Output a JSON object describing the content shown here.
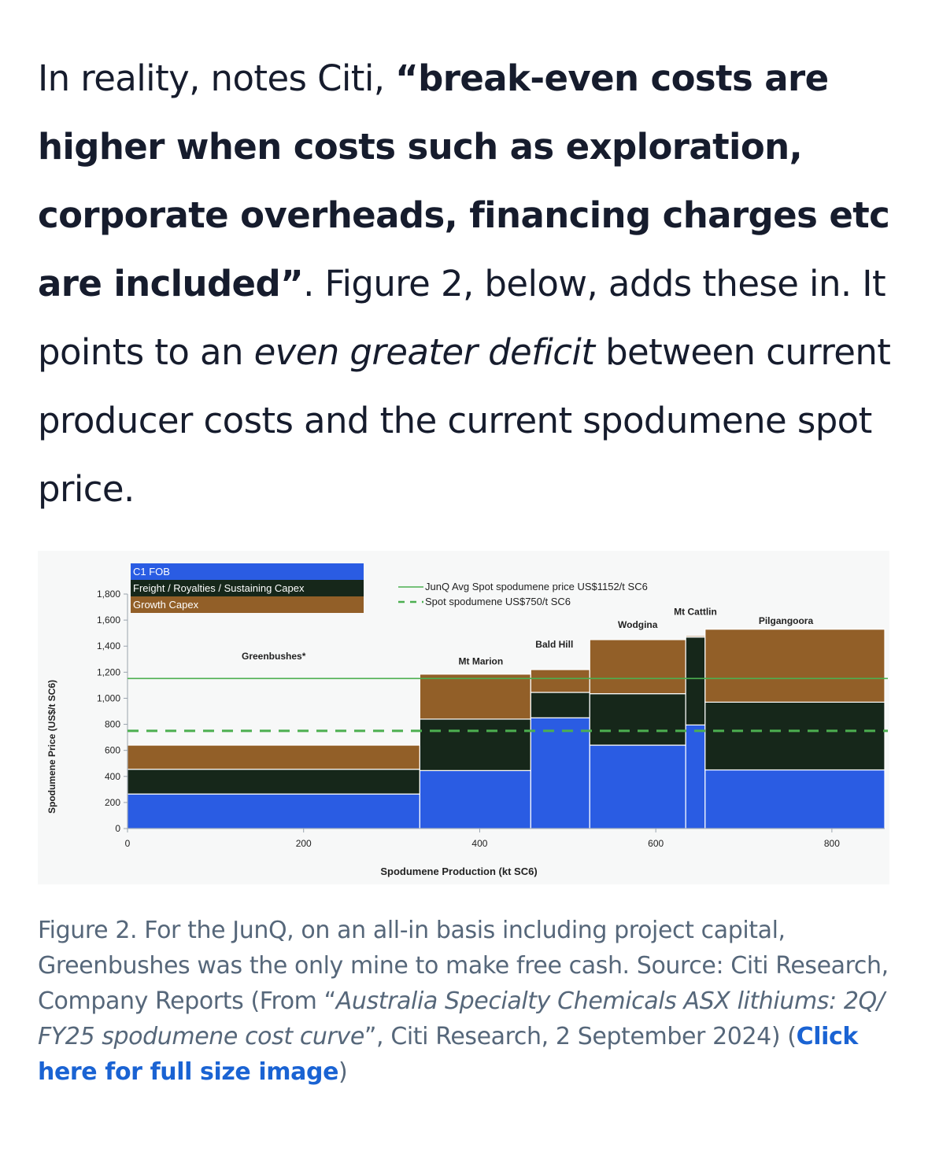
{
  "paragraph": {
    "t1": "In reality, notes Citi, ",
    "b1": "“break-even costs are higher when costs such as exploration, corporate overheads, financing charges etc are included”",
    "t2": ". Figure 2, below, adds these in. It points to an ",
    "i1": "even greater deficit",
    "t3": " between current producer costs and the current spodumene spot price."
  },
  "caption": {
    "t1": "Figure 2. For the JunQ, on an all-in basis including project capital, Greenbushes was the only mine to make free cash. Source: Citi Research, Company Reports (From “",
    "i1": "Australia Specialty Chemicals ASX lithiums: 2Q/ FY25 spodumene cost curve",
    "t2": "”, Citi Research, 2 September 2024) (",
    "link": "Click here for full size image",
    "t3": ")"
  },
  "colors": {
    "c1_fob": "#2a5ce3",
    "freight": "#16271a",
    "growth": "#925f28",
    "junq_line": "#4caf50",
    "spot_line": "#4caf50",
    "link": "#1a63d3"
  },
  "chart_data": {
    "type": "bar",
    "subtype": "stacked-variable-width cost curve",
    "xlabel": "Spodumene Production (kt SC6)",
    "ylabel": "Spodumene Price (US$/t SC6)",
    "xlim": [
      0,
      860
    ],
    "ylim": [
      0,
      1800
    ],
    "xticks": [
      0,
      200,
      400,
      600,
      800
    ],
    "yticks": [
      0,
      200,
      400,
      600,
      800,
      1000,
      1200,
      1400,
      1600,
      1800
    ],
    "ytick_labels": [
      "0",
      "200",
      "400",
      "600",
      "800",
      "1,000",
      "1,200",
      "1,400",
      "1,600",
      "1,800"
    ],
    "legend": [
      "C1 FOB",
      "Freight / Royalties / Sustaining Capex",
      "Growth Capex"
    ],
    "legend_position": "top-left",
    "reference_lines": [
      {
        "label": "JunQ Avg Spot spodumene price US$1152/t SC6",
        "y": 1152,
        "style": "solid"
      },
      {
        "label": "Spot spodumene US$750/t SC6",
        "y": 750,
        "style": "dashed"
      }
    ],
    "bars": [
      {
        "name": "Greenbushes*",
        "x0": 0,
        "x1": 332,
        "c1_fob": 265,
        "freight": 190,
        "growth": 185
      },
      {
        "name": "Mt Marion",
        "x0": 332,
        "x1": 458,
        "c1_fob": 445,
        "freight": 395,
        "growth": 345
      },
      {
        "name": "Bald Hill",
        "x0": 458,
        "x1": 525,
        "c1_fob": 850,
        "freight": 195,
        "growth": 175
      },
      {
        "name": "Wodgina",
        "x0": 525,
        "x1": 634,
        "c1_fob": 640,
        "freight": 395,
        "growth": 415
      },
      {
        "name": "Mt Cattlin",
        "x0": 634,
        "x1": 656,
        "c1_fob": 795,
        "freight": 675,
        "growth": 10
      },
      {
        "name": "Pilgangoora",
        "x0": 656,
        "x1": 860,
        "c1_fob": 450,
        "freight": 520,
        "growth": 560
      }
    ]
  }
}
